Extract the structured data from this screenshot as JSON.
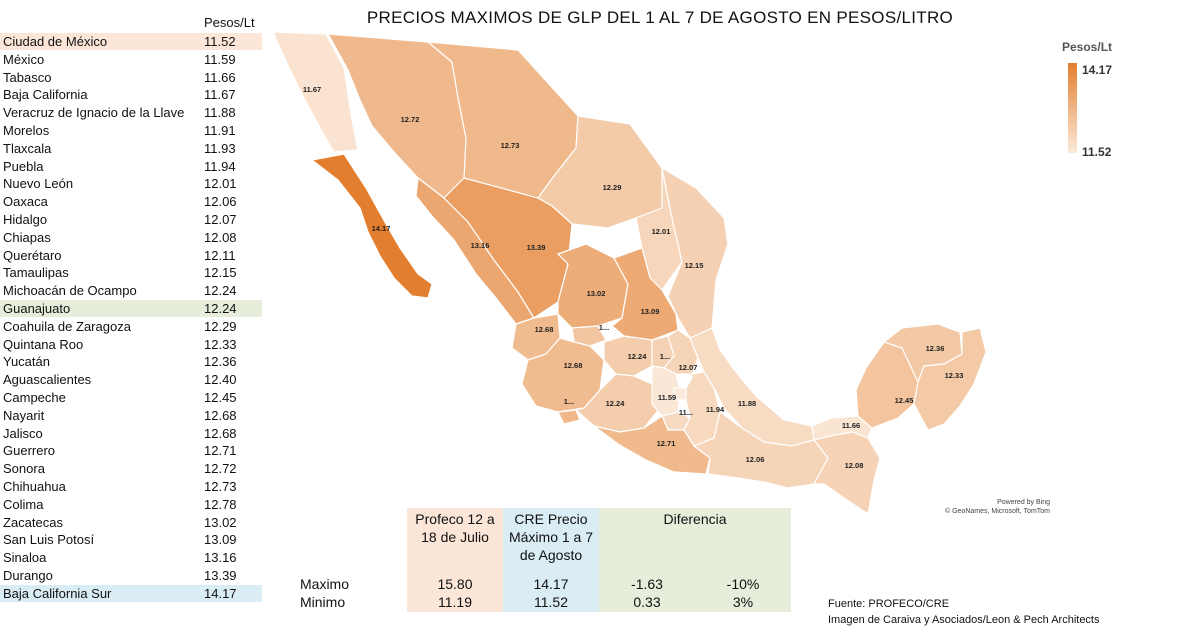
{
  "title": "PRECIOS MAXIMOS  DE GLP DEL 1 AL 7 DE AGOSTO EN PESOS/LITRO",
  "table": {
    "header": "Pesos/Lt",
    "rows": [
      {
        "name": "Ciudad de México",
        "value": "11.52",
        "highlight": "#fbe6d8"
      },
      {
        "name": "México",
        "value": "11.59"
      },
      {
        "name": "Tabasco",
        "value": "11.66"
      },
      {
        "name": "Baja California",
        "value": "11.67"
      },
      {
        "name": "Veracruz de Ignacio de la Llave",
        "value": "11.88"
      },
      {
        "name": "Morelos",
        "value": "11.91"
      },
      {
        "name": "Tlaxcala",
        "value": "11.93"
      },
      {
        "name": "Puebla",
        "value": "11.94"
      },
      {
        "name": "Nuevo León",
        "value": "12.01"
      },
      {
        "name": "Oaxaca",
        "value": "12.06"
      },
      {
        "name": "Hidalgo",
        "value": "12.07"
      },
      {
        "name": "Chiapas",
        "value": "12.08"
      },
      {
        "name": "Querétaro",
        "value": "12.11"
      },
      {
        "name": "Tamaulipas",
        "value": "12.15"
      },
      {
        "name": "Michoacán de Ocampo",
        "value": "12.24"
      },
      {
        "name": "Guanajuato",
        "value": "12.24",
        "highlight": "#e6eedb"
      },
      {
        "name": "Coahuila de Zaragoza",
        "value": "12.29"
      },
      {
        "name": "Quintana Roo",
        "value": "12.33"
      },
      {
        "name": "Yucatán",
        "value": "12.36"
      },
      {
        "name": "Aguascalientes",
        "value": "12.40"
      },
      {
        "name": "Campeche",
        "value": "12.45"
      },
      {
        "name": "Nayarit",
        "value": "12.68"
      },
      {
        "name": "Jalisco",
        "value": "12.68"
      },
      {
        "name": "Guerrero",
        "value": "12.71"
      },
      {
        "name": "Sonora",
        "value": "12.72"
      },
      {
        "name": "Chihuahua",
        "value": "12.73"
      },
      {
        "name": "Colima",
        "value": "12.78"
      },
      {
        "name": "Zacatecas",
        "value": "13.02"
      },
      {
        "name": "San Luis Potosí",
        "value": "13.09"
      },
      {
        "name": "Sinaloa",
        "value": "13.16"
      },
      {
        "name": "Durango",
        "value": "13.39"
      },
      {
        "name": "Baja California Sur",
        "value": "14.17",
        "highlight": "#dbedf4"
      }
    ]
  },
  "chart_data": {
    "type": "choropleth map",
    "value_range": [
      11.52,
      14.17
    ],
    "color_min": "#fbeadb",
    "color_max": "#e37e2e",
    "regions": [
      {
        "name": "Baja California",
        "value": 11.67,
        "label": "11.67"
      },
      {
        "name": "Baja California Sur",
        "value": 14.17,
        "label": "14.17"
      },
      {
        "name": "Sonora",
        "value": 12.72,
        "label": "12.72"
      },
      {
        "name": "Chihuahua",
        "value": 12.73,
        "label": "12.73"
      },
      {
        "name": "Coahuila de Zaragoza",
        "value": 12.29,
        "label": "12.29"
      },
      {
        "name": "Nuevo León",
        "value": 12.01,
        "label": "12.01"
      },
      {
        "name": "Tamaulipas",
        "value": 12.15,
        "label": "12.15"
      },
      {
        "name": "Sinaloa",
        "value": 13.16,
        "label": "13.16"
      },
      {
        "name": "Durango",
        "value": 13.39,
        "label": "13.39"
      },
      {
        "name": "Zacatecas",
        "value": 13.02,
        "label": "13.02"
      },
      {
        "name": "San Luis Potosí",
        "value": 13.09,
        "label": "13.09"
      },
      {
        "name": "Nayarit",
        "value": 12.68,
        "label": "12.68"
      },
      {
        "name": "Aguascalientes",
        "value": 12.4,
        "label": "1..."
      },
      {
        "name": "Jalisco",
        "value": 12.68,
        "label": "12.68"
      },
      {
        "name": "Guanajuato",
        "value": 12.24,
        "label": "12.24"
      },
      {
        "name": "Querétaro",
        "value": 12.11,
        "label": "1..."
      },
      {
        "name": "Hidalgo",
        "value": 12.07,
        "label": "12.07"
      },
      {
        "name": "Colima",
        "value": 12.78,
        "label": "1..."
      },
      {
        "name": "Michoacán de Ocampo",
        "value": 12.24,
        "label": "12.24"
      },
      {
        "name": "México",
        "value": 11.59,
        "label": "11.59"
      },
      {
        "name": "Ciudad de México",
        "value": 11.52,
        "label": ""
      },
      {
        "name": "Morelos",
        "value": 11.91,
        "label": "11..."
      },
      {
        "name": "Tlaxcala",
        "value": 11.93,
        "label": ""
      },
      {
        "name": "Puebla",
        "value": 11.94,
        "label": "11.94"
      },
      {
        "name": "Veracruz de Ignacio de la Llave",
        "value": 11.88,
        "label": "11.88"
      },
      {
        "name": "Guerrero",
        "value": 12.71,
        "label": "12.71"
      },
      {
        "name": "Oaxaca",
        "value": 12.06,
        "label": "12.06"
      },
      {
        "name": "Tabasco",
        "value": 11.66,
        "label": "11.66"
      },
      {
        "name": "Chiapas",
        "value": 12.08,
        "label": "12.08"
      },
      {
        "name": "Campeche",
        "value": 12.45,
        "label": "12.45"
      },
      {
        "name": "Yucatán",
        "value": 12.36,
        "label": "12.36"
      },
      {
        "name": "Quintana Roo",
        "value": 12.33,
        "label": "12.33"
      }
    ]
  },
  "legend": {
    "title": "Pesos/Lt",
    "max": "14.17",
    "min": "11.52"
  },
  "attribution": {
    "line1": "Powered by Bing",
    "line2": "© GeoNames, Microsoft, TomTom"
  },
  "comparison": {
    "col1": "Profeco 12 a 18 de Julio",
    "col2": "CRE Precio Máximo 1 a 7 de Agosto",
    "col3": "Diferencia",
    "row_max_label": "Maximo",
    "row_min_label": "Minimo",
    "max": {
      "profeco": "15.80",
      "cre": "14.17",
      "diff": "-1.63",
      "pct": "-10%"
    },
    "min": {
      "profeco": "11.19",
      "cre": "11.52",
      "diff": "0.33",
      "pct": "3%"
    },
    "colors": {
      "profeco": "#fbe6d8",
      "cre": "#dbedf4",
      "diff": "#e6eedb"
    }
  },
  "source": {
    "line1": "Fuente: PROFECO/CRE",
    "line2": "Imagen de Caraiva y Asociados/Leon & Pech Architects"
  }
}
